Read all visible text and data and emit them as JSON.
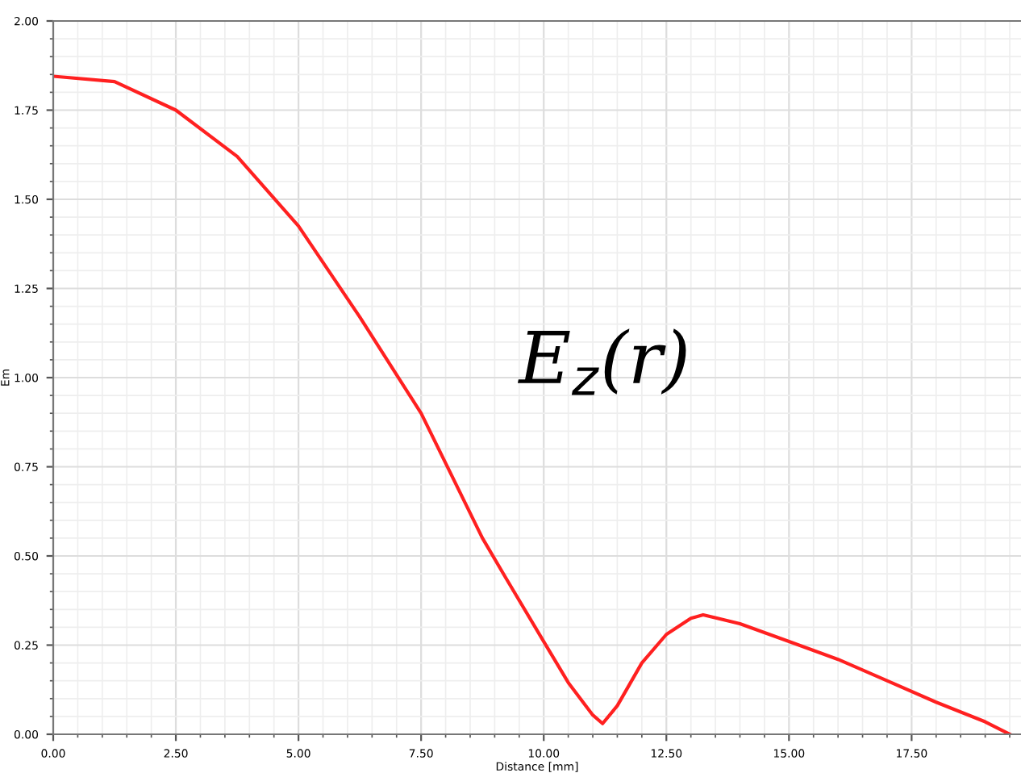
{
  "chart_data": {
    "type": "line",
    "xlabel": "Distance [mm]",
    "ylabel": "Em",
    "annotations": [
      "E$_{z}$(r)"
    ],
    "x": [
      0,
      1.25,
      2.5,
      3.75,
      5,
      6.25,
      7.5,
      8.75,
      9.22,
      10.0,
      10.5,
      11.0,
      11.2,
      11.5,
      12.0,
      12.5,
      13.0,
      13.25,
      14.0,
      15.0,
      16.0,
      17.0,
      18.0,
      19.0,
      19.5
    ],
    "series": [
      {
        "color": "#ff2020",
        "values": [
          1.845,
          1.83,
          1.75,
          1.62,
          1.425,
          1.17,
          0.9,
          0.55,
          0.44,
          0.26,
          0.145,
          0.054,
          0.03,
          0.08,
          0.2,
          0.28,
          0.325,
          0.335,
          0.31,
          0.26,
          0.21,
          0.15,
          0.09,
          0.035,
          0.0
        ]
      }
    ],
    "xlim": [
      0,
      19.73
    ],
    "xticks": [
      {
        "value": 0,
        "label": "0.00"
      },
      {
        "value": 2.5,
        "label": "2.50"
      },
      {
        "value": 5,
        "label": "5.00"
      },
      {
        "value": 7.5,
        "label": "7.50"
      },
      {
        "value": 10,
        "label": "10.00"
      },
      {
        "value": 12.5,
        "label": "12.50"
      },
      {
        "value": 15,
        "label": "15.00"
      },
      {
        "value": 17.5,
        "label": "17.50"
      }
    ],
    "ylim": [
      0,
      2.0
    ],
    "yticks": [
      {
        "value": 0,
        "label": "0.00"
      },
      {
        "value": 0.25,
        "label": "0.25"
      },
      {
        "value": 0.5,
        "label": "0.50"
      },
      {
        "value": 0.75,
        "label": "0.75"
      },
      {
        "value": 1.0,
        "label": "1.00"
      },
      {
        "value": 1.25,
        "label": "1.25"
      },
      {
        "value": 1.5,
        "label": "1.50"
      },
      {
        "value": 1.75,
        "label": "1.75"
      },
      {
        "value": 2.0,
        "label": "2.00"
      }
    ],
    "grid": true,
    "legend": false,
    "marker": "none",
    "line_style": "solid"
  }
}
